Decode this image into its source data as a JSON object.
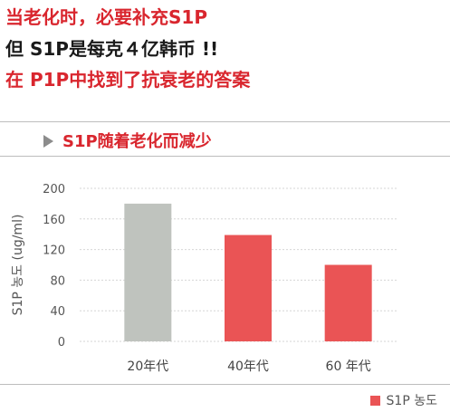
{
  "header": {
    "line1": "当老化时，必要补充S1P",
    "line2": "但 S1P是每克４亿韩币 !!",
    "line3": "在 P1P中找到了抗衰老的答案"
  },
  "colors": {
    "accent": "#d9262e",
    "bar_gray": "#bfc3be",
    "bar_red": "#ea5455"
  },
  "chart_data": {
    "type": "bar",
    "title": "S1P随着老化而减少",
    "ylabel": "S1P 농도 (ug/ml)",
    "xlabel": "",
    "categories": [
      "20年代",
      "40年代",
      "60 年代"
    ],
    "series": [
      {
        "name": "S1P 농도",
        "values": [
          180,
          139,
          100
        ]
      }
    ],
    "bar_colors": [
      "#bfc3be",
      "#ea5455",
      "#ea5455"
    ],
    "ylim": [
      0,
      200
    ],
    "yticks": [
      0,
      40,
      80,
      120,
      160,
      200
    ],
    "grid": true,
    "legend": "bottom-right"
  }
}
